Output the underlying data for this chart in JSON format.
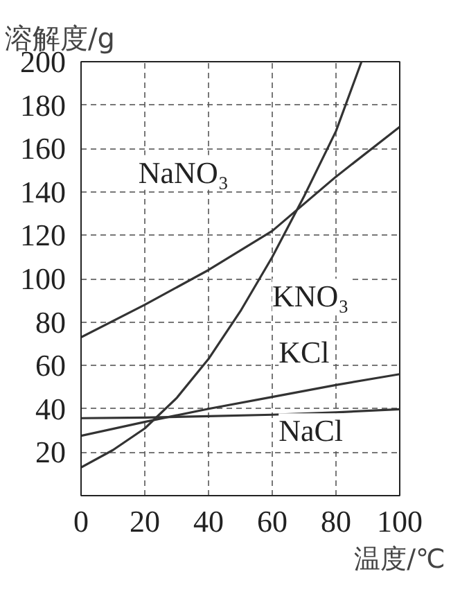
{
  "chart_data": {
    "type": "line",
    "xlabel": "温度/℃",
    "ylabel": "溶解度/g",
    "xlim": [
      0,
      100
    ],
    "ylim": [
      0,
      200
    ],
    "xticks": [
      0,
      20,
      40,
      60,
      80,
      100
    ],
    "yticks": [
      20,
      40,
      60,
      80,
      100,
      120,
      140,
      160,
      180,
      200
    ],
    "grid": true,
    "line_style": "solid",
    "marker": "none",
    "series": [
      {
        "name": "NaNO₃",
        "color": "#333333",
        "x": [
          0,
          20,
          40,
          60,
          80,
          100
        ],
        "values": [
          73,
          88,
          104,
          122,
          147,
          170
        ]
      },
      {
        "name": "KNO₃",
        "color": "#333333",
        "x": [
          0,
          10,
          20,
          30,
          40,
          50,
          60,
          70,
          80,
          88
        ],
        "values": [
          13,
          21,
          31,
          45,
          63,
          85,
          110,
          138,
          168,
          200
        ]
      },
      {
        "name": "KCl",
        "color": "#333333",
        "x": [
          0,
          20,
          40,
          60,
          80,
          100
        ],
        "values": [
          27.6,
          34,
          40,
          45.5,
          51,
          56
        ]
      },
      {
        "name": "NaCl",
        "color": "#333333",
        "x": [
          0,
          20,
          40,
          60,
          80,
          100
        ],
        "values": [
          35.7,
          36,
          36.6,
          37.3,
          38.4,
          39.8
        ]
      }
    ]
  }
}
